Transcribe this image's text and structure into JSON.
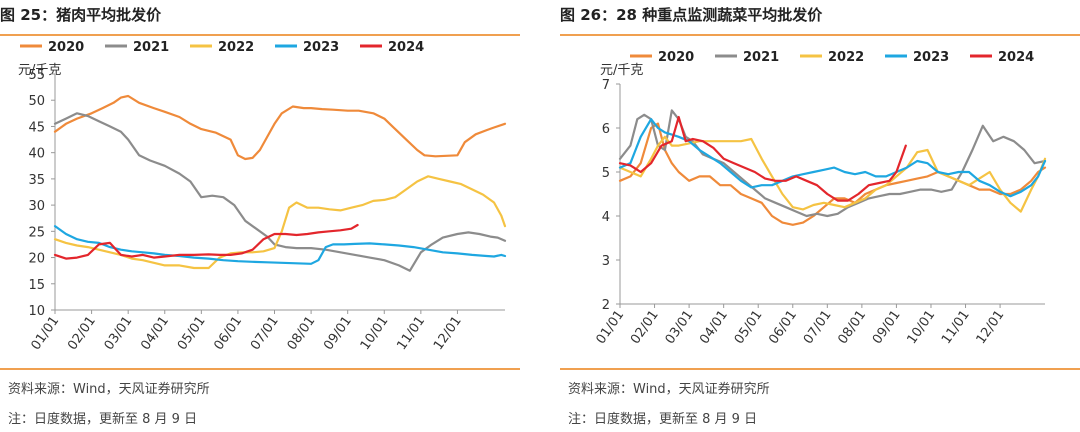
{
  "left": {
    "title": "图 25：猪肉平均批发价",
    "source": "资料来源：Wind，天风证券研究所",
    "note": "注：日度数据，更新至 8 月 9 日"
  },
  "right": {
    "title": "图 26：28 种重点监测蔬菜平均批发价",
    "source": "资料来源：Wind，天风证券研究所",
    "note": "注：日度数据，更新至 8 月 9 日"
  },
  "chart_data": [
    {
      "type": "line",
      "title": "图 25：猪肉平均批发价",
      "ylabel": "元/千克",
      "ylim": [
        10,
        55
      ],
      "yticks": [
        10,
        15,
        20,
        25,
        30,
        35,
        40,
        45,
        50,
        55
      ],
      "xticks": [
        "01/01",
        "02/01",
        "03/01",
        "04/01",
        "05/01",
        "06/01",
        "07/01",
        "08/01",
        "09/01",
        "10/01",
        "11/01",
        "12/01"
      ],
      "xlim": [
        0,
        12.3
      ],
      "series": [
        {
          "name": "2020",
          "color": "#ef8a3a",
          "x": [
            0,
            0.3,
            0.6,
            1.0,
            1.3,
            1.6,
            1.8,
            2.0,
            2.3,
            2.7,
            3.0,
            3.4,
            3.7,
            4.0,
            4.4,
            4.8,
            5.0,
            5.2,
            5.4,
            5.6,
            5.8,
            6.0,
            6.2,
            6.5,
            6.8,
            7.0,
            7.3,
            7.6,
            8.0,
            8.3,
            8.7,
            9.0,
            9.3,
            9.6,
            9.9,
            10.1,
            10.4,
            10.7,
            11.0,
            11.2,
            11.5,
            11.8,
            12.0,
            12.3
          ],
          "y": [
            44,
            45.5,
            46.5,
            47.5,
            48.5,
            49.5,
            50.5,
            50.8,
            49.5,
            48.5,
            47.8,
            46.8,
            45.5,
            44.5,
            43.8,
            42.5,
            39.5,
            38.8,
            39.0,
            40.5,
            43,
            45.5,
            47.5,
            48.8,
            48.5,
            48.5,
            48.3,
            48.2,
            48.0,
            48.0,
            47.5,
            46.5,
            44.5,
            42.5,
            40.5,
            39.5,
            39.3,
            39.4,
            39.5,
            42.0,
            43.5,
            44.3,
            44.8,
            45.5
          ]
        },
        {
          "name": "2021",
          "color": "#8c8c8c",
          "x": [
            0,
            0.3,
            0.6,
            0.9,
            1.2,
            1.5,
            1.8,
            2.0,
            2.3,
            2.6,
            3.0,
            3.4,
            3.7,
            4.0,
            4.3,
            4.6,
            4.9,
            5.2,
            5.5,
            5.8,
            6.0,
            6.3,
            6.6,
            7.0,
            7.4,
            7.8,
            8.2,
            8.6,
            9.0,
            9.4,
            9.7,
            10.0,
            10.3,
            10.6,
            11.0,
            11.3,
            11.6,
            11.9,
            12.1,
            12.3
          ],
          "y": [
            45.5,
            46.5,
            47.5,
            47,
            46,
            45,
            44,
            42.5,
            39.5,
            38.5,
            37.5,
            36,
            34.5,
            31.5,
            31.8,
            31.5,
            30,
            27,
            25.5,
            24,
            22.5,
            22,
            21.8,
            21.8,
            21.5,
            21,
            20.5,
            20,
            19.5,
            18.5,
            17.5,
            21,
            22.5,
            23.8,
            24.5,
            24.8,
            24.5,
            24.0,
            23.8,
            23.2
          ]
        },
        {
          "name": "2022",
          "color": "#f5c343",
          "x": [
            0,
            0.3,
            0.6,
            0.9,
            1.2,
            1.5,
            1.8,
            2.1,
            2.4,
            2.7,
            3.0,
            3.4,
            3.8,
            4.2,
            4.5,
            4.8,
            5.1,
            5.4,
            5.7,
            6.0,
            6.2,
            6.4,
            6.6,
            6.9,
            7.2,
            7.5,
            7.8,
            8.1,
            8.4,
            8.7,
            9.0,
            9.3,
            9.6,
            9.9,
            10.2,
            10.5,
            10.8,
            11.1,
            11.4,
            11.7,
            12.0,
            12.2,
            12.3
          ],
          "y": [
            23.5,
            22.8,
            22.3,
            22,
            21.5,
            21,
            20.5,
            19.8,
            19.5,
            19,
            18.5,
            18.5,
            18.0,
            18.0,
            20,
            20.8,
            21,
            21,
            21.2,
            21.8,
            25,
            29.5,
            30.5,
            29.5,
            29.5,
            29.2,
            29.0,
            29.5,
            30.0,
            30.8,
            31.0,
            31.5,
            33.0,
            34.5,
            35.5,
            35,
            34.5,
            34.0,
            33.0,
            32.0,
            30.5,
            28.0,
            26.0
          ]
        },
        {
          "name": "2023",
          "color": "#1ea7e1",
          "x": [
            0,
            0.3,
            0.6,
            0.9,
            1.2,
            1.5,
            1.8,
            2.1,
            2.4,
            2.7,
            3.0,
            3.4,
            3.8,
            4.2,
            4.6,
            5.0,
            5.4,
            5.8,
            6.2,
            6.6,
            7.0,
            7.2,
            7.4,
            7.6,
            7.9,
            8.2,
            8.6,
            9.0,
            9.4,
            9.8,
            10.2,
            10.6,
            11.0,
            11.4,
            11.8,
            12.0,
            12.2,
            12.3
          ],
          "y": [
            26,
            24.5,
            23.5,
            23,
            22.8,
            22,
            21.5,
            21.2,
            21,
            20.8,
            20.5,
            20.3,
            20,
            19.8,
            19.5,
            19.3,
            19.2,
            19.1,
            19.0,
            18.9,
            18.8,
            19.5,
            22.0,
            22.5,
            22.5,
            22.6,
            22.7,
            22.5,
            22.3,
            22.0,
            21.5,
            21.0,
            20.8,
            20.5,
            20.3,
            20.2,
            20.5,
            20.3
          ]
        },
        {
          "name": "2024",
          "color": "#e3262c",
          "x": [
            0,
            0.3,
            0.6,
            0.9,
            1.2,
            1.5,
            1.8,
            2.1,
            2.4,
            2.7,
            3.0,
            3.4,
            3.8,
            4.2,
            4.5,
            4.8,
            5.1,
            5.4,
            5.7,
            6.0,
            6.3,
            6.6,
            6.9,
            7.2,
            7.5,
            7.8,
            8.1,
            8.27
          ],
          "y": [
            20.5,
            19.8,
            20,
            20.5,
            22.5,
            22.8,
            20.5,
            20.2,
            20.5,
            20,
            20.2,
            20.5,
            20.5,
            20.6,
            20.5,
            20.5,
            20.8,
            21.5,
            23.5,
            24.5,
            24.5,
            24.3,
            24.5,
            24.8,
            25,
            25.2,
            25.5,
            26.2
          ]
        }
      ]
    },
    {
      "type": "line",
      "title": "图 26：28 种重点监测蔬菜平均批发价",
      "ylabel": "元/千克",
      "ylim": [
        2,
        7
      ],
      "yticks": [
        2,
        3,
        4,
        5,
        6,
        7
      ],
      "xticks": [
        "01/01",
        "02/01",
        "03/01",
        "04/01",
        "05/01",
        "06/01",
        "07/01",
        "08/01",
        "09/01",
        "10/01",
        "11/01",
        "12/01"
      ],
      "xlim": [
        0,
        12.3
      ],
      "series": [
        {
          "name": "2020",
          "color": "#ef8a3a",
          "x": [
            0,
            0.3,
            0.6,
            0.9,
            1.1,
            1.3,
            1.5,
            1.7,
            2.0,
            2.3,
            2.6,
            2.9,
            3.2,
            3.5,
            3.8,
            4.1,
            4.4,
            4.7,
            5.0,
            5.3,
            5.6,
            5.9,
            6.2,
            6.5,
            6.8,
            7.1,
            7.4,
            7.7,
            8.0,
            8.3,
            8.6,
            8.9,
            9.2,
            9.5,
            9.8,
            10.1,
            10.4,
            10.7,
            11.0,
            11.3,
            11.6,
            11.9,
            12.1,
            12.3
          ],
          "y": [
            4.8,
            4.9,
            5.2,
            6.0,
            6.1,
            5.5,
            5.2,
            5.0,
            4.8,
            4.9,
            4.9,
            4.7,
            4.7,
            4.5,
            4.4,
            4.3,
            4.0,
            3.85,
            3.8,
            3.85,
            4.0,
            4.2,
            4.4,
            4.4,
            4.3,
            4.5,
            4.6,
            4.7,
            4.75,
            4.8,
            4.85,
            4.9,
            5.0,
            4.9,
            4.8,
            4.7,
            4.6,
            4.6,
            4.5,
            4.5,
            4.6,
            4.8,
            5.0,
            5.1
          ]
        },
        {
          "name": "2021",
          "color": "#8c8c8c",
          "x": [
            0,
            0.3,
            0.5,
            0.7,
            0.9,
            1.1,
            1.3,
            1.5,
            1.7,
            1.9,
            2.1,
            2.4,
            2.7,
            3.0,
            3.3,
            3.6,
            3.9,
            4.2,
            4.5,
            4.8,
            5.1,
            5.4,
            5.7,
            6.0,
            6.3,
            6.6,
            6.9,
            7.2,
            7.5,
            7.8,
            8.1,
            8.4,
            8.7,
            9.0,
            9.3,
            9.6,
            9.9,
            10.2,
            10.5,
            10.8,
            11.1,
            11.4,
            11.7,
            12.0,
            12.3
          ],
          "y": [
            5.3,
            5.6,
            6.2,
            6.3,
            6.2,
            5.6,
            5.5,
            6.4,
            6.2,
            5.8,
            5.7,
            5.4,
            5.3,
            5.2,
            5.0,
            4.8,
            4.6,
            4.4,
            4.3,
            4.2,
            4.1,
            4.0,
            4.05,
            4.0,
            4.05,
            4.2,
            4.3,
            4.4,
            4.45,
            4.5,
            4.5,
            4.55,
            4.6,
            4.6,
            4.55,
            4.6,
            5.0,
            5.5,
            6.05,
            5.7,
            5.8,
            5.7,
            5.5,
            5.2,
            5.25
          ]
        },
        {
          "name": "2022",
          "color": "#f5c343",
          "x": [
            0,
            0.3,
            0.6,
            0.9,
            1.1,
            1.3,
            1.5,
            1.7,
            2.0,
            2.3,
            2.6,
            2.9,
            3.2,
            3.5,
            3.8,
            4.1,
            4.4,
            4.7,
            5.0,
            5.3,
            5.6,
            5.9,
            6.2,
            6.5,
            6.8,
            7.1,
            7.4,
            7.7,
            8.0,
            8.3,
            8.6,
            8.9,
            9.2,
            9.5,
            9.8,
            10.1,
            10.4,
            10.7,
            11.0,
            11.3,
            11.6,
            11.9,
            12.1,
            12.3
          ],
          "y": [
            5.1,
            5.0,
            4.9,
            5.3,
            5.6,
            5.8,
            5.6,
            5.6,
            5.65,
            5.7,
            5.7,
            5.7,
            5.7,
            5.7,
            5.75,
            5.3,
            4.9,
            4.5,
            4.2,
            4.15,
            4.25,
            4.3,
            4.25,
            4.2,
            4.3,
            4.4,
            4.6,
            4.7,
            4.9,
            5.1,
            5.45,
            5.5,
            5.0,
            4.9,
            4.8,
            4.7,
            4.85,
            5.0,
            4.6,
            4.3,
            4.1,
            4.6,
            4.9,
            5.3
          ]
        },
        {
          "name": "2023",
          "color": "#1ea7e1",
          "x": [
            0,
            0.3,
            0.6,
            0.9,
            1.1,
            1.3,
            1.5,
            1.7,
            2.0,
            2.3,
            2.6,
            2.9,
            3.2,
            3.5,
            3.8,
            4.1,
            4.4,
            4.7,
            5.0,
            5.3,
            5.6,
            5.9,
            6.2,
            6.5,
            6.8,
            7.1,
            7.4,
            7.7,
            8.0,
            8.3,
            8.6,
            8.9,
            9.2,
            9.5,
            9.8,
            10.1,
            10.4,
            10.7,
            11.0,
            11.3,
            11.6,
            11.9,
            12.1,
            12.3
          ],
          "y": [
            5.1,
            5.2,
            5.8,
            6.2,
            6.0,
            5.9,
            5.85,
            5.8,
            5.7,
            5.5,
            5.35,
            5.2,
            5.0,
            4.8,
            4.65,
            4.7,
            4.7,
            4.8,
            4.9,
            4.95,
            5.0,
            5.05,
            5.1,
            5.0,
            4.95,
            5.0,
            4.9,
            4.9,
            5.0,
            5.1,
            5.25,
            5.2,
            5.0,
            4.95,
            5.0,
            5.0,
            4.8,
            4.7,
            4.55,
            4.45,
            4.55,
            4.7,
            4.9,
            5.25
          ]
        },
        {
          "name": "2024",
          "color": "#e3262c",
          "x": [
            0,
            0.3,
            0.6,
            0.9,
            1.2,
            1.5,
            1.7,
            1.9,
            2.1,
            2.4,
            2.7,
            3.0,
            3.3,
            3.6,
            3.9,
            4.2,
            4.5,
            4.8,
            5.1,
            5.4,
            5.7,
            6.0,
            6.3,
            6.6,
            6.9,
            7.2,
            7.5,
            7.8,
            8.0,
            8.27
          ],
          "y": [
            5.2,
            5.15,
            5.0,
            5.2,
            5.6,
            5.7,
            6.25,
            5.7,
            5.75,
            5.7,
            5.55,
            5.3,
            5.2,
            5.1,
            5.0,
            4.85,
            4.8,
            4.8,
            4.9,
            4.8,
            4.7,
            4.5,
            4.35,
            4.35,
            4.5,
            4.7,
            4.75,
            4.8,
            5.0,
            5.6
          ]
        }
      ]
    }
  ]
}
